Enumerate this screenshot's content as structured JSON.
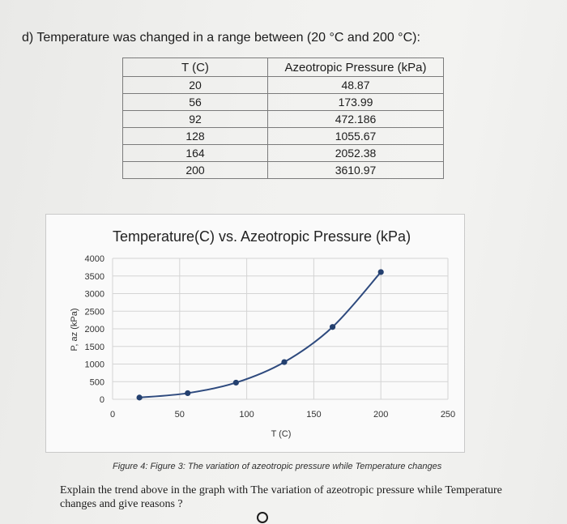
{
  "heading": "d) Temperature was changed in a range between (20 °C and 200 °C):",
  "table": {
    "headers": [
      "T (C)",
      "Azeotropic Pressure (kPa)"
    ],
    "rows": [
      [
        "20",
        "48.87"
      ],
      [
        "56",
        "173.99"
      ],
      [
        "92",
        "472.186"
      ],
      [
        "128",
        "1055.67"
      ],
      [
        "164",
        "2052.38"
      ],
      [
        "200",
        "3610.97"
      ]
    ]
  },
  "chart_data": {
    "type": "line",
    "title": "Temperature(C) vs. Azeotropic Pressure (kPa)",
    "xlabel": "T (C)",
    "ylabel": "P, az (kPa)",
    "x": [
      20,
      56,
      92,
      128,
      164,
      200
    ],
    "series": [
      {
        "values": [
          48.87,
          173.99,
          472.186,
          1055.67,
          2052.38,
          3610.97
        ]
      }
    ],
    "xlim": [
      0,
      250
    ],
    "ylim": [
      0,
      4000
    ],
    "xticks": [
      0,
      50,
      100,
      150,
      200,
      250
    ],
    "yticks": [
      0,
      500,
      1000,
      1500,
      2000,
      2500,
      3000,
      3500,
      4000
    ],
    "grid": true,
    "line_color": "#2e4a7e",
    "marker_color": "#24406f"
  },
  "caption": "Figure 4: Figure 3: The variation of azeotropic pressure while Temperature changes",
  "question": "Explain the trend above in the graph with The variation of azeotropic pressure while Temperature changes and give reasons ?"
}
